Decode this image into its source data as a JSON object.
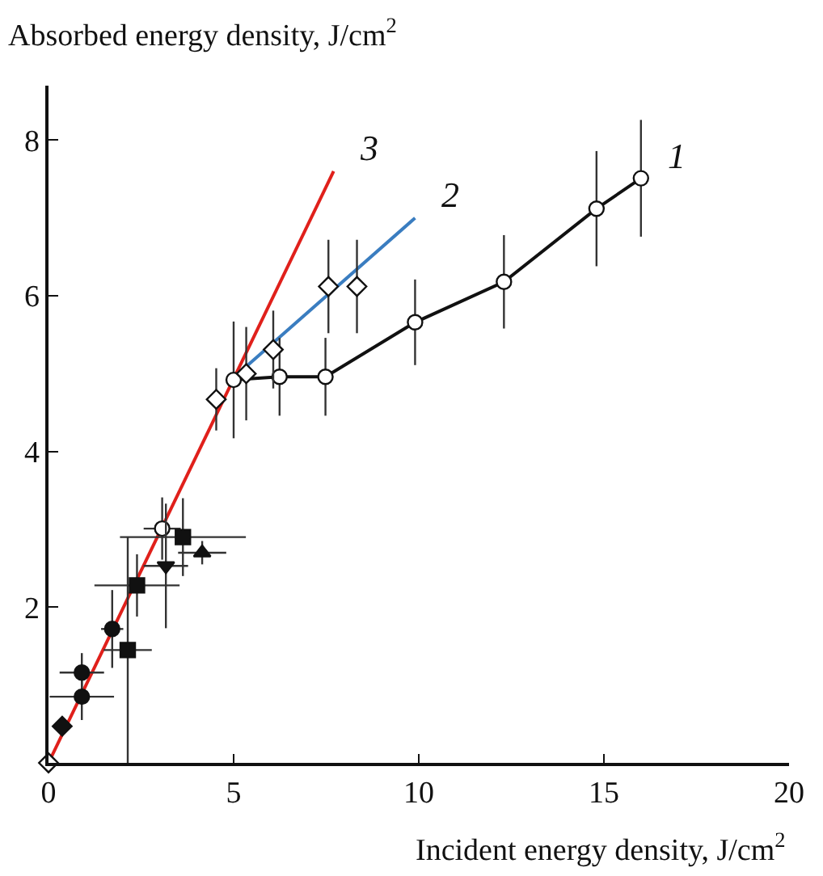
{
  "chart_data": {
    "type": "scatter",
    "xlabel": "Incident energy density, J/cm$^{2}$",
    "ylabel": "Absorbed energy density, J/cm$^{2}$",
    "xlim": [
      0,
      20
    ],
    "ylim": [
      0,
      8.7
    ],
    "xticks": [
      0,
      5,
      10,
      15,
      20
    ],
    "yticks": [
      2,
      4,
      6,
      8
    ],
    "series": [
      {
        "type": "line",
        "color": "#e0201b",
        "marker": "none",
        "x": [
          0,
          7.7
        ],
        "values": [
          0,
          7.6
        ]
      },
      {
        "type": "line",
        "color": "#3a7dc0",
        "marker": "none",
        "x": [
          5,
          9.9
        ],
        "values": [
          4.95,
          7.0
        ]
      },
      {
        "type": "line",
        "color": "#111111",
        "marker": "none",
        "x": [
          5.0,
          6.24,
          7.48,
          9.9,
          12.3,
          14.8,
          16.0
        ],
        "values": [
          4.92,
          4.96,
          4.96,
          5.66,
          6.18,
          7.12,
          7.51
        ]
      },
      {
        "color": "#ffffff",
        "marker": "circle",
        "x": [
          5.0,
          6.24,
          7.48,
          9.9,
          12.3,
          14.8,
          16.0
        ],
        "values": [
          4.92,
          4.96,
          4.96,
          5.66,
          6.18,
          7.12,
          7.51
        ],
        "errors": [
          0.75,
          0.5,
          0.5,
          0.55,
          0.6,
          0.74,
          0.75
        ]
      },
      {
        "color": "#ffffff",
        "marker": "diamond",
        "x": [
          0,
          4.53,
          5.34,
          6.07,
          7.56,
          8.33
        ],
        "values": [
          0,
          4.67,
          5.0,
          5.31,
          6.12,
          6.12
        ],
        "errors": [
          null,
          0.4,
          0.6,
          0.5,
          0.6,
          0.6
        ]
      },
      {
        "color": "#ffffff",
        "marker": "circle",
        "x": [
          3.07
        ],
        "values": [
          3.01
        ],
        "errors": [
          0.4
        ],
        "xerrors": [
          0.5
        ]
      },
      {
        "color": "#111111",
        "marker": "diamond",
        "x": [
          0.37
        ],
        "values": [
          0.47
        ]
      },
      {
        "color": "#111111",
        "marker": "circle",
        "x": [
          0.9,
          0.9,
          1.72
        ],
        "values": [
          0.85,
          1.16,
          1.72
        ],
        "errors": [
          0.3,
          0.25,
          0.5
        ],
        "xerrors": [
          0.87,
          0.6,
          0.3
        ]
      },
      {
        "color": "#111111",
        "marker": "square",
        "x": [
          2.14,
          2.39,
          3.63
        ],
        "values": [
          1.45,
          2.28,
          2.9
        ],
        "errors": [
          [
            0,
            2.9
          ],
          0.4,
          0.5
        ],
        "xerrors": [
          0.65,
          1.15,
          1.7
        ]
      },
      {
        "color": "#111111",
        "marker": "triangle-down",
        "x": [
          3.17
        ],
        "values": [
          2.53
        ],
        "errors": [
          0.8
        ],
        "xerrors": [
          0.6
        ]
      },
      {
        "color": "#111111",
        "marker": "triangle",
        "x": [
          4.15
        ],
        "values": [
          2.7
        ],
        "errors": [
          0.15
        ],
        "xerrors": [
          0.65
        ]
      }
    ],
    "annotations": [
      "3",
      "2",
      "1"
    ]
  }
}
